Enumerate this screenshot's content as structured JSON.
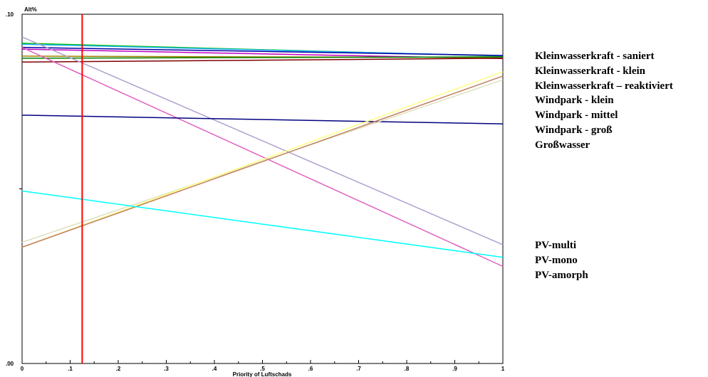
{
  "chart_data": {
    "type": "line",
    "ylabel": "Alt%",
    "xlabel": "Priority of Luftschads",
    "xlim": [
      0,
      1
    ],
    "ylim": [
      0,
      0.1
    ],
    "x_ticks": [
      "0",
      ".1",
      ".2",
      ".3",
      ".4",
      ".5",
      ".6",
      ".7",
      ".8",
      ".9",
      "1"
    ],
    "y_tick_labels": [
      ".10",
      ".00"
    ],
    "marker": {
      "x": 0.125,
      "color": "#ff0000"
    },
    "series": [
      {
        "color": "#00c000",
        "values": [
          0.0917,
          0.088
        ]
      },
      {
        "color": "#20b0ff",
        "values": [
          0.0914,
          0.0881
        ]
      },
      {
        "color": "#0000a0",
        "values": [
          0.0905,
          0.0882
        ]
      },
      {
        "color": "#c000c0",
        "values": [
          0.09,
          0.0873
        ]
      },
      {
        "color": "#a08000",
        "values": [
          0.088,
          0.0876
        ]
      },
      {
        "color": "#008000",
        "values": [
          0.0874,
          0.0878
        ]
      },
      {
        "color": "#800000",
        "values": [
          0.0863,
          0.0874
        ]
      },
      {
        "color": "#b0a0d0",
        "values": [
          0.0935,
          0.034
        ]
      },
      {
        "color": "#e060c0",
        "values": [
          0.0905,
          0.0278
        ]
      },
      {
        "color": "#000080",
        "values": [
          0.0711,
          0.0686
        ]
      },
      {
        "color": "#e0e0c0",
        "values": [
          0.0347,
          0.0812
        ]
      },
      {
        "color": "#ffff80",
        "values": [
          0.0333,
          0.0835
        ]
      },
      {
        "color": "#c08060",
        "values": [
          0.0333,
          0.0823
        ]
      },
      {
        "color": "#00ffff",
        "values": [
          0.0494,
          0.0304
        ]
      }
    ]
  },
  "legend_top": [
    "Kleinwasserkraft - saniert",
    "Kleinwasserkraft - klein",
    "Kleinwasserkraft – reaktiviert",
    "Windpark - klein",
    "Windpark - mittel",
    "Windpark - groß",
    "Großwasser"
  ],
  "legend_bottom": [
    "PV-multi",
    "PV-mono",
    "PV-amorph"
  ]
}
